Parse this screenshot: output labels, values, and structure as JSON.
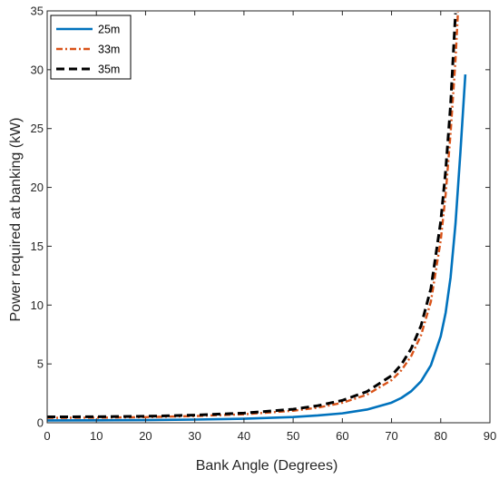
{
  "chart_data": {
    "type": "line",
    "title": "",
    "xlabel": "Bank Angle (Degrees)",
    "ylabel": "Power required at banking (kW)",
    "xlim": [
      0,
      90
    ],
    "ylim": [
      0,
      35
    ],
    "xticks": [
      0,
      10,
      20,
      30,
      40,
      50,
      60,
      70,
      80,
      90
    ],
    "yticks": [
      0,
      5,
      10,
      15,
      20,
      25,
      30,
      35
    ],
    "grid": false,
    "legend_position": "top-left",
    "series": [
      {
        "name": "25m",
        "color": "#0072BD",
        "style": "solid",
        "x": [
          0,
          10,
          20,
          30,
          40,
          50,
          55,
          60,
          65,
          70,
          72,
          74,
          76,
          78,
          80,
          81,
          82,
          83,
          84,
          85
        ],
        "y": [
          0.2,
          0.21,
          0.23,
          0.27,
          0.34,
          0.49,
          0.62,
          0.8,
          1.12,
          1.71,
          2.11,
          2.68,
          3.52,
          4.88,
          7.35,
          9.35,
          12.35,
          16.9,
          23.0,
          29.6
        ]
      },
      {
        "name": "33m",
        "color": "#D95319",
        "style": "dash-dot",
        "x": [
          0,
          10,
          20,
          30,
          40,
          50,
          55,
          60,
          65,
          70,
          72,
          74,
          76,
          78,
          80,
          81,
          82,
          83,
          83.5
        ],
        "y": [
          0.42,
          0.43,
          0.48,
          0.57,
          0.72,
          1.02,
          1.28,
          1.7,
          2.38,
          3.62,
          4.46,
          5.67,
          7.44,
          10.3,
          15.5,
          19.4,
          24.6,
          30.8,
          34.9
        ]
      },
      {
        "name": "35m",
        "color": "#000000",
        "style": "dashed",
        "x": [
          0,
          10,
          20,
          30,
          40,
          50,
          55,
          60,
          65,
          70,
          72,
          74,
          76,
          78,
          80,
          81,
          82,
          83
        ],
        "y": [
          0.5,
          0.51,
          0.55,
          0.65,
          0.82,
          1.15,
          1.45,
          1.9,
          2.65,
          4.0,
          4.95,
          6.3,
          8.25,
          11.4,
          17.1,
          21.4,
          27.0,
          34.8
        ]
      }
    ]
  }
}
